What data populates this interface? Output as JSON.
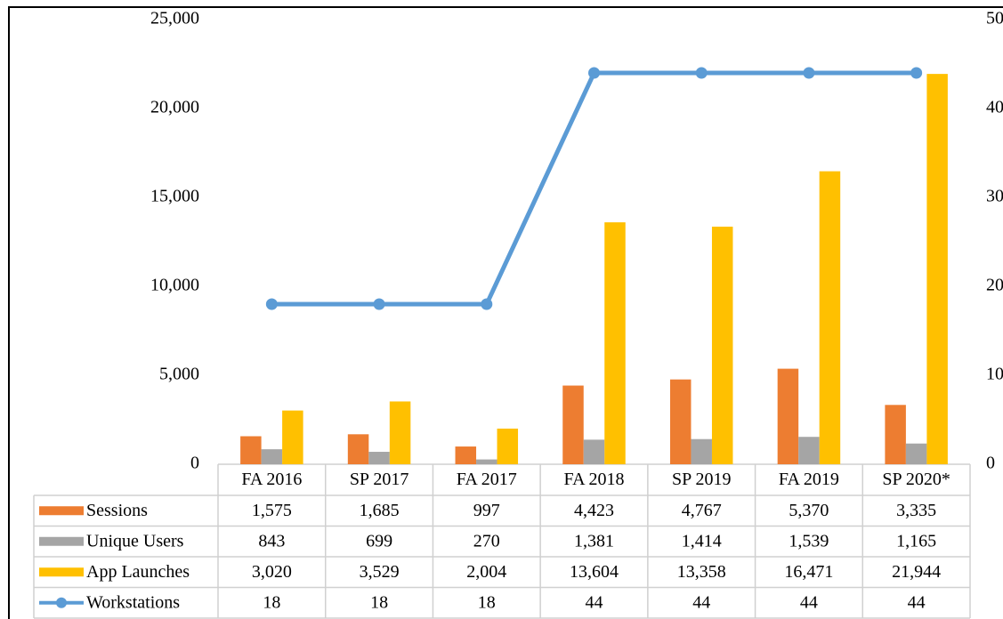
{
  "chart_data": {
    "type": "bar",
    "categories": [
      "FA 2016",
      "SP 2017",
      "FA 2017",
      "FA 2018",
      "SP 2019",
      "FA 2019",
      "SP 2020*"
    ],
    "series": [
      {
        "name": "Sessions",
        "color": "#ED7D31",
        "values": [
          1575,
          1685,
          997,
          4423,
          4767,
          5370,
          3335
        ],
        "value_labels": [
          "1,575",
          "1,685",
          "997",
          "4,423",
          "4,767",
          "5,370",
          "3,335"
        ]
      },
      {
        "name": "Unique Users",
        "color": "#A5A5A5",
        "values": [
          843,
          699,
          270,
          1381,
          1414,
          1539,
          1165
        ],
        "value_labels": [
          "843",
          "699",
          "270",
          "1,381",
          "1,414",
          "1,539",
          "1,165"
        ]
      },
      {
        "name": "App Launches",
        "color": "#FFC000",
        "values": [
          3020,
          3529,
          2004,
          13604,
          13358,
          16471,
          21944
        ],
        "value_labels": [
          "3,020",
          "3,529",
          "2,004",
          "13,604",
          "13,358",
          "16,471",
          "21,944"
        ]
      },
      {
        "name": "Workstations",
        "color": "#5B9BD5",
        "type": "line",
        "axis": "y2",
        "values": [
          18,
          18,
          18,
          44,
          44,
          44,
          44
        ]
      }
    ],
    "ylim": [
      0,
      25000
    ],
    "yticks": [
      0,
      {
        "value": 5000,
        "label": "5,000"
      },
      {
        "value": 10000,
        "label": "10,000"
      },
      {
        "value": 15000,
        "label": "15,000"
      },
      {
        "value": 20000,
        "label": "20,000"
      },
      {
        "value": 25000,
        "label": "25,000"
      }
    ],
    "y2lim": [
      0,
      50
    ],
    "y2ticks": [
      0,
      10,
      20,
      30,
      40,
      50
    ]
  }
}
